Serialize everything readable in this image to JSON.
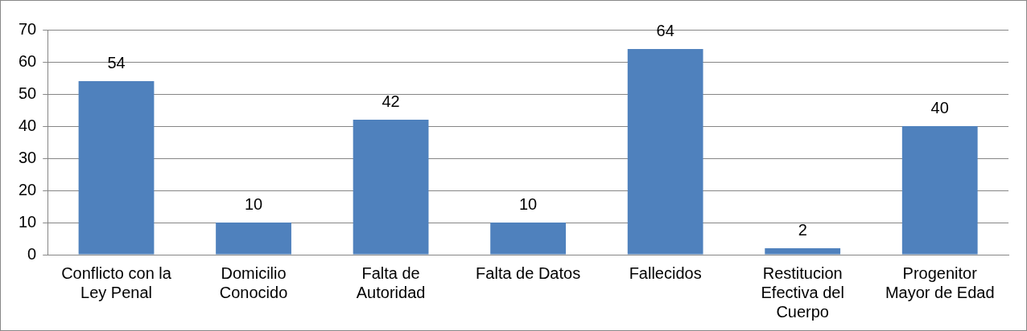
{
  "chart_data": {
    "type": "bar",
    "categories": [
      "Conflicto con la Ley Penal",
      "Domicilio Conocido",
      "Falta de Autoridad",
      "Falta de Datos",
      "Fallecidos",
      "Restitucion Efectiva del Cuerpo",
      "Progenitor Mayor de Edad"
    ],
    "values": [
      54,
      10,
      42,
      10,
      64,
      2,
      40
    ],
    "color": "#4f81bd",
    "ylim": [
      0,
      70
    ],
    "yticks": [
      0,
      10,
      20,
      30,
      40,
      50,
      60,
      70
    ],
    "grid": "y",
    "data_labels": true,
    "legend": false
  }
}
